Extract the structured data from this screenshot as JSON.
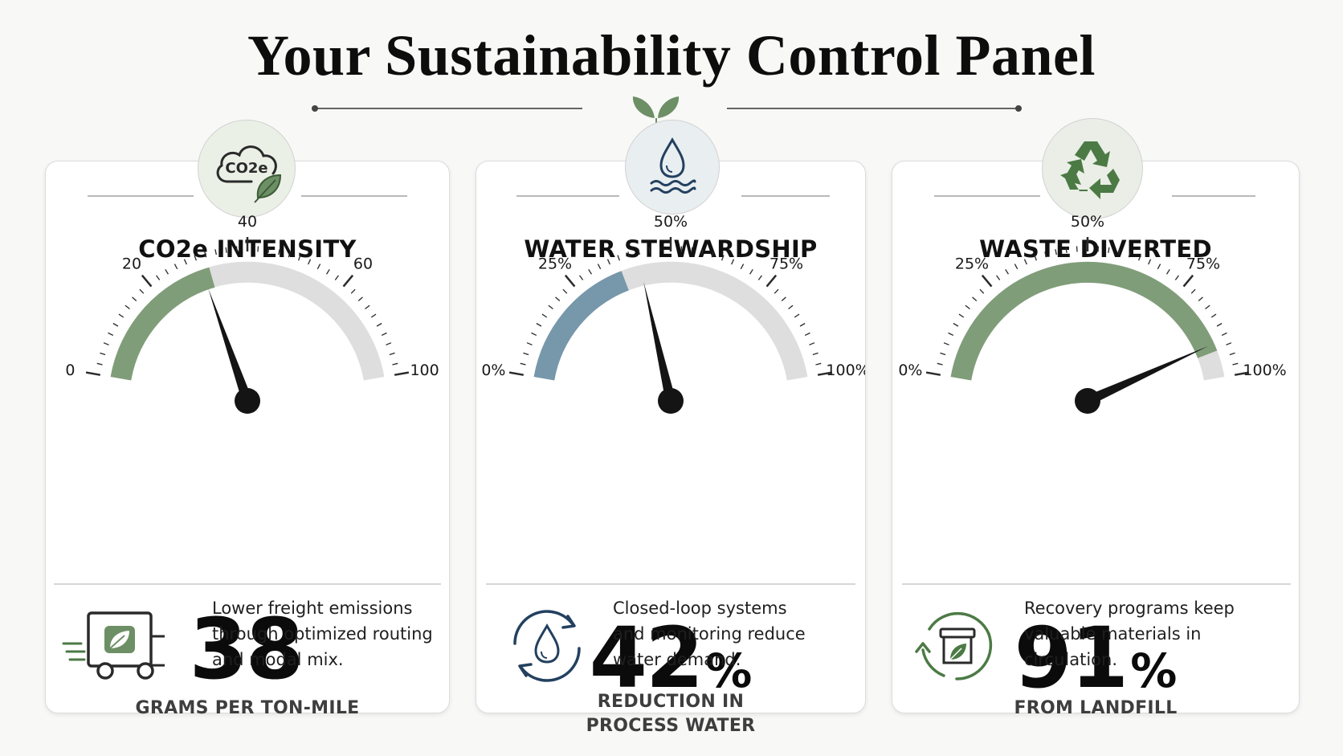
{
  "title": "Your Sustainability Control Panel",
  "colors": {
    "green": "#809d79",
    "blue": "#7797ab",
    "track": "#dedede",
    "navy": "#23405f",
    "dark_green": "#4c7a45"
  },
  "cards": [
    {
      "title": "CO2e INTENSITY",
      "icon": "co2-cloud-leaf-icon",
      "badge_text": "CO2e",
      "gauge": {
        "min": 0,
        "max": 100,
        "value": 38,
        "fill_to": 40,
        "fill_color": "green",
        "tick_labels": [
          "0",
          "20",
          "40",
          "60",
          "100"
        ]
      },
      "value": "38",
      "value_suffix": "",
      "subtitle_lines": [
        "GRAMS PER TON-MILE"
      ],
      "footer_icon": "delivery-truck-leaf-icon",
      "footer_lines": [
        "Lower freight emissions",
        "through optimized routing",
        "and modal mix."
      ]
    },
    {
      "title": "WATER STEWARDSHIP",
      "icon": "water-drop-icon",
      "gauge": {
        "min": 0,
        "max": 100,
        "value": 42,
        "fill_to": 37,
        "fill_color": "blue",
        "tick_labels": [
          "0%",
          "25%",
          "50%",
          "75%",
          "100%"
        ]
      },
      "value": "42",
      "value_suffix": "%",
      "subtitle_lines": [
        "REDUCTION IN",
        "PROCESS WATER"
      ],
      "footer_icon": "closed-loop-water-icon",
      "footer_lines": [
        "Closed-loop systems",
        "and monitoring reduce",
        "water demand."
      ]
    },
    {
      "title": "WASTE DIVERTED",
      "icon": "recycle-icon",
      "gauge": {
        "min": 0,
        "max": 100,
        "value": 91,
        "fill_to": 93,
        "fill_color": "green",
        "tick_labels": [
          "0%",
          "25%",
          "50%",
          "75%",
          "100%"
        ]
      },
      "value": "91",
      "value_suffix": "%",
      "subtitle_lines": [
        "FROM LANDFILL"
      ],
      "footer_icon": "recovery-bin-icon",
      "footer_lines": [
        "Recovery programs keep",
        "valuable materials in",
        "circulation."
      ]
    }
  ]
}
